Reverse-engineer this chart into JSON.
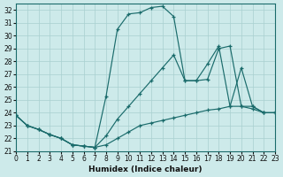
{
  "xlabel": "Humidex (Indice chaleur)",
  "xlim": [
    0,
    23
  ],
  "ylim": [
    21,
    32.5
  ],
  "yticks": [
    21,
    22,
    23,
    24,
    25,
    26,
    27,
    28,
    29,
    30,
    31,
    32
  ],
  "xticks": [
    0,
    1,
    2,
    3,
    4,
    5,
    6,
    7,
    8,
    9,
    10,
    11,
    12,
    13,
    14,
    15,
    16,
    17,
    18,
    19,
    20,
    21,
    22,
    23
  ],
  "bg_color": "#cdeaea",
  "grid_color": "#a8d0d0",
  "line_color": "#1a6b6b",
  "line1_x": [
    0,
    1,
    2,
    3,
    4,
    5,
    6,
    7,
    8,
    9,
    10,
    11,
    12,
    13,
    14,
    15,
    16,
    17,
    18,
    19,
    20,
    21,
    22,
    23
  ],
  "line1_y": [
    23.8,
    23.0,
    22.7,
    22.3,
    22.0,
    21.5,
    21.4,
    21.3,
    21.5,
    22.0,
    22.5,
    23.0,
    23.2,
    23.4,
    23.6,
    23.8,
    24.0,
    24.2,
    24.3,
    24.5,
    24.5,
    24.3,
    24.0,
    24.0
  ],
  "line2_x": [
    0,
    1,
    2,
    3,
    4,
    5,
    6,
    7,
    8,
    9,
    10,
    11,
    12,
    13,
    14,
    15,
    16,
    17,
    18,
    19,
    20,
    21,
    22,
    23
  ],
  "line2_y": [
    23.8,
    23.0,
    22.7,
    22.3,
    22.0,
    21.5,
    21.4,
    21.3,
    25.3,
    30.5,
    31.7,
    31.8,
    32.2,
    32.3,
    31.5,
    26.5,
    26.5,
    26.6,
    29.0,
    29.2,
    24.5,
    24.5,
    24.0,
    24.0
  ],
  "line3_x": [
    0,
    1,
    2,
    3,
    4,
    5,
    6,
    7,
    8,
    9,
    10,
    11,
    12,
    13,
    14,
    15,
    16,
    17,
    18,
    19,
    20,
    21,
    22,
    23
  ],
  "line3_y": [
    23.8,
    23.0,
    22.7,
    22.3,
    22.0,
    21.5,
    21.4,
    21.3,
    22.2,
    23.5,
    24.5,
    25.5,
    26.5,
    27.5,
    28.5,
    26.5,
    26.5,
    27.8,
    29.2,
    24.5,
    27.5,
    24.5,
    24.0,
    24.0
  ]
}
